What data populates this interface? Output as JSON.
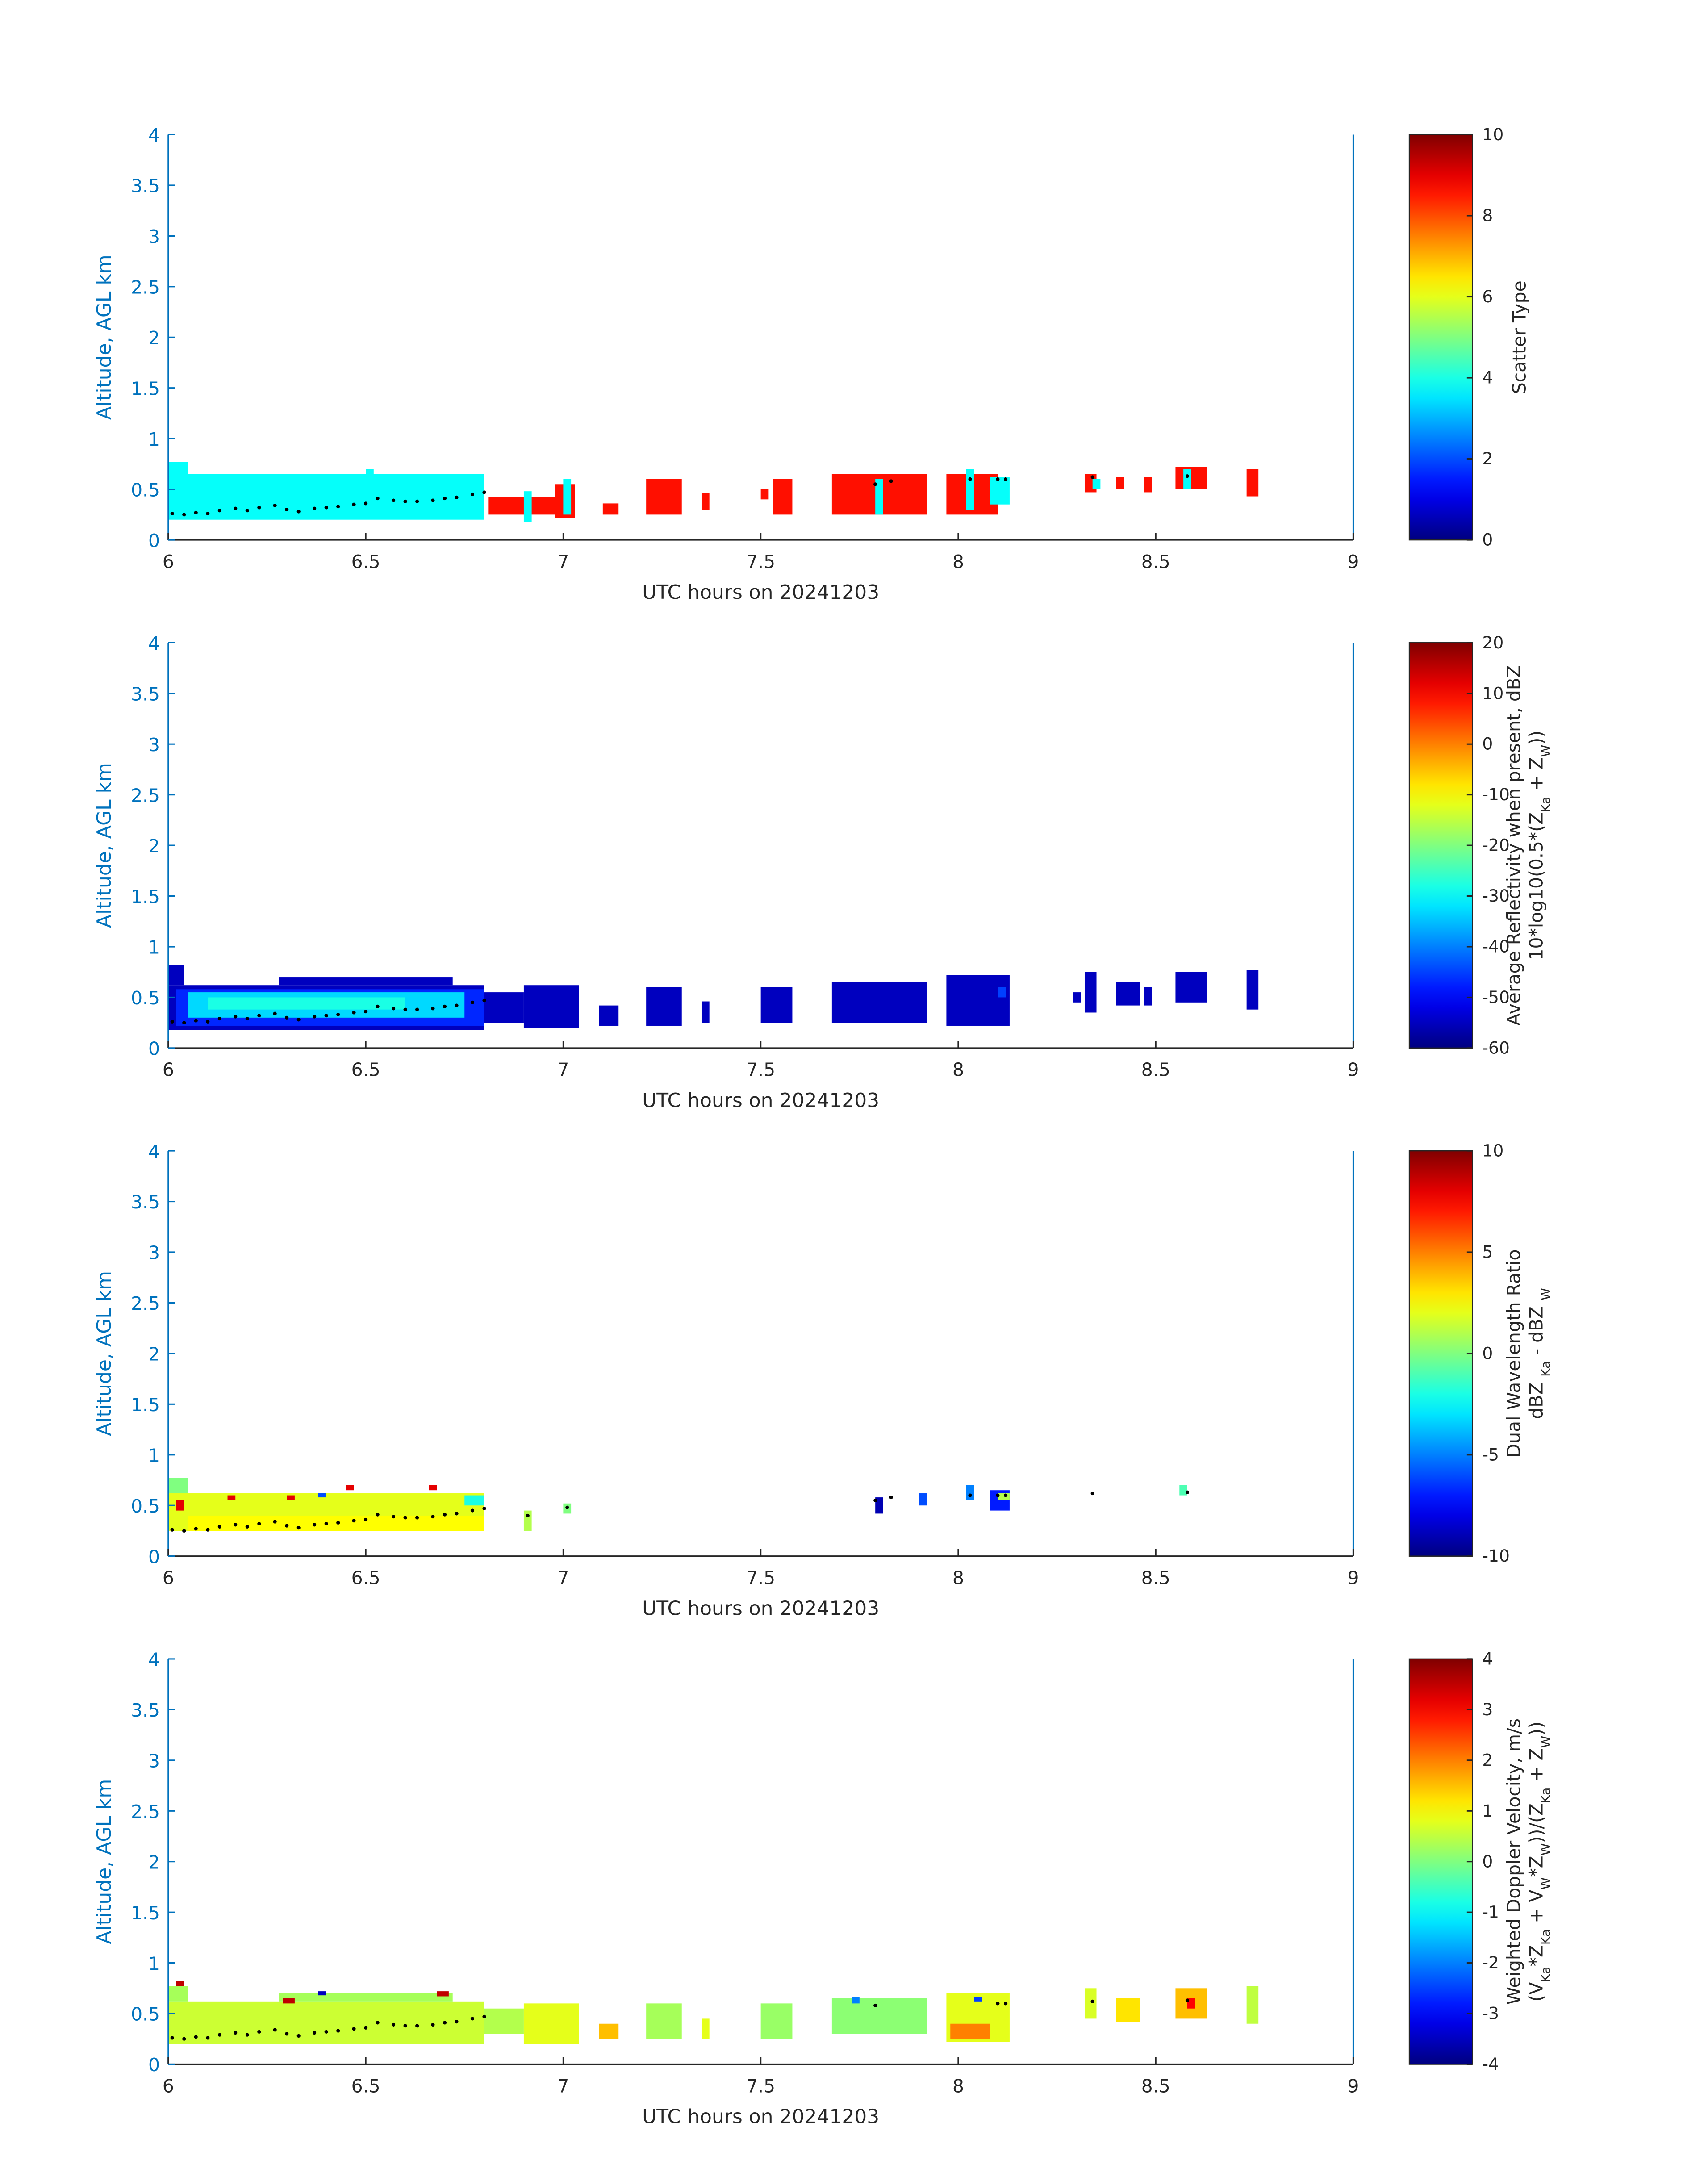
{
  "chart_data": [
    {
      "type": "heatmap",
      "colormap": "jet",
      "ylabel": "Altitude, AGL km",
      "xlabel": "UTC hours on 20241203",
      "xlim": [
        6,
        9
      ],
      "xticks": [
        6,
        6.5,
        7,
        7.5,
        8,
        8.5,
        9
      ],
      "ylim": [
        0,
        4
      ],
      "yticks": [
        0,
        0.5,
        1,
        1.5,
        2,
        2.5,
        3,
        3.5,
        4
      ],
      "clim": [
        0,
        10
      ],
      "cticks": [
        0,
        2,
        4,
        6,
        8,
        10
      ],
      "clabel": [
        [
          "Scatter Type"
        ]
      ],
      "cells": [
        [
          6.0,
          6.05,
          0.2,
          0.77,
          3.8
        ],
        [
          6.05,
          6.8,
          0.2,
          0.65,
          3.8
        ],
        [
          6.5,
          6.52,
          0.65,
          0.7,
          3.8
        ],
        [
          6.81,
          6.98,
          0.25,
          0.42,
          8.6
        ],
        [
          6.9,
          6.92,
          0.18,
          0.48,
          3.8
        ],
        [
          6.98,
          7.03,
          0.22,
          0.55,
          8.6
        ],
        [
          7.0,
          7.02,
          0.25,
          0.6,
          3.8
        ],
        [
          7.1,
          7.14,
          0.25,
          0.36,
          8.6
        ],
        [
          7.21,
          7.3,
          0.25,
          0.6,
          8.6
        ],
        [
          7.35,
          7.37,
          0.3,
          0.46,
          8.6
        ],
        [
          7.5,
          7.52,
          0.4,
          0.5,
          8.6
        ],
        [
          7.53,
          7.58,
          0.25,
          0.6,
          8.6
        ],
        [
          7.68,
          7.92,
          0.25,
          0.65,
          8.6
        ],
        [
          7.79,
          7.81,
          0.25,
          0.6,
          3.8
        ],
        [
          7.97,
          8.1,
          0.25,
          0.65,
          8.6
        ],
        [
          8.02,
          8.04,
          0.3,
          0.7,
          3.8
        ],
        [
          8.08,
          8.13,
          0.35,
          0.62,
          3.8
        ],
        [
          8.32,
          8.35,
          0.47,
          0.65,
          8.6
        ],
        [
          8.34,
          8.36,
          0.5,
          0.6,
          3.8
        ],
        [
          8.4,
          8.42,
          0.5,
          0.62,
          8.6
        ],
        [
          8.47,
          8.49,
          0.47,
          0.62,
          8.6
        ],
        [
          8.55,
          8.63,
          0.5,
          0.72,
          8.6
        ],
        [
          8.57,
          8.59,
          0.5,
          0.7,
          3.8
        ],
        [
          8.73,
          8.76,
          0.43,
          0.7,
          8.6
        ]
      ],
      "cloud_base": {
        "x": [
          6.01,
          6.04,
          6.07,
          6.1,
          6.13,
          6.17,
          6.2,
          6.23,
          6.27,
          6.3,
          6.33,
          6.37,
          6.4,
          6.43,
          6.47,
          6.5,
          6.53,
          6.57,
          6.6,
          6.63,
          6.67,
          6.7,
          6.73,
          6.77,
          6.8,
          7.79,
          7.83,
          8.03,
          8.1,
          8.12,
          8.34,
          8.58
        ],
        "y": [
          0.26,
          0.25,
          0.27,
          0.26,
          0.29,
          0.31,
          0.29,
          0.32,
          0.34,
          0.3,
          0.28,
          0.31,
          0.32,
          0.33,
          0.35,
          0.36,
          0.41,
          0.39,
          0.38,
          0.38,
          0.39,
          0.41,
          0.42,
          0.45,
          0.47,
          0.55,
          0.58,
          0.6,
          0.6,
          0.6,
          0.62,
          0.63
        ]
      }
    },
    {
      "type": "heatmap",
      "colormap": "jet",
      "ylabel": "Altitude, AGL km",
      "xlabel": "UTC hours on 20241203",
      "xlim": [
        6,
        9
      ],
      "xticks": [
        6,
        6.5,
        7,
        7.5,
        8,
        8.5,
        9
      ],
      "ylim": [
        0,
        4
      ],
      "yticks": [
        0,
        0.5,
        1,
        1.5,
        2,
        2.5,
        3,
        3.5,
        4
      ],
      "clim": [
        -60,
        20
      ],
      "cticks": [
        -60,
        -50,
        -40,
        -30,
        -20,
        -10,
        0,
        10,
        20
      ],
      "clabel": [
        [
          "Average Reflectivity when present, dBZ"
        ],
        [
          "10*log10(0.5*(Z",
          "Ka",
          " + Z",
          "W",
          "))"
        ]
      ],
      "cells": [
        [
          6.0,
          6.8,
          0.18,
          0.62,
          -55
        ],
        [
          6.0,
          6.04,
          0.62,
          0.82,
          -55
        ],
        [
          6.28,
          6.72,
          0.62,
          0.7,
          -55
        ],
        [
          6.02,
          6.8,
          0.22,
          0.58,
          -47
        ],
        [
          6.05,
          6.75,
          0.3,
          0.55,
          -33
        ],
        [
          6.1,
          6.6,
          0.38,
          0.5,
          -28
        ],
        [
          6.8,
          6.9,
          0.25,
          0.55,
          -55
        ],
        [
          6.9,
          7.04,
          0.2,
          0.62,
          -55
        ],
        [
          7.09,
          7.14,
          0.22,
          0.42,
          -55
        ],
        [
          7.21,
          7.3,
          0.22,
          0.6,
          -55
        ],
        [
          7.35,
          7.37,
          0.25,
          0.46,
          -55
        ],
        [
          7.5,
          7.58,
          0.25,
          0.6,
          -55
        ],
        [
          7.68,
          7.92,
          0.25,
          0.65,
          -55
        ],
        [
          7.97,
          8.13,
          0.22,
          0.72,
          -55
        ],
        [
          8.1,
          8.12,
          0.5,
          0.6,
          -45
        ],
        [
          8.29,
          8.31,
          0.45,
          0.55,
          -55
        ],
        [
          8.32,
          8.35,
          0.35,
          0.75,
          -55
        ],
        [
          8.4,
          8.46,
          0.42,
          0.65,
          -55
        ],
        [
          8.47,
          8.49,
          0.42,
          0.6,
          -55
        ],
        [
          8.55,
          8.63,
          0.45,
          0.75,
          -55
        ],
        [
          8.73,
          8.76,
          0.38,
          0.77,
          -55
        ]
      ],
      "cloud_base": {
        "x": [
          6.01,
          6.04,
          6.07,
          6.1,
          6.13,
          6.17,
          6.2,
          6.23,
          6.27,
          6.3,
          6.33,
          6.37,
          6.4,
          6.43,
          6.47,
          6.5,
          6.53,
          6.57,
          6.6,
          6.63,
          6.67,
          6.7,
          6.73,
          6.77,
          6.8
        ],
        "y": [
          0.26,
          0.25,
          0.27,
          0.26,
          0.29,
          0.31,
          0.29,
          0.32,
          0.34,
          0.3,
          0.28,
          0.31,
          0.32,
          0.33,
          0.35,
          0.36,
          0.41,
          0.39,
          0.38,
          0.38,
          0.39,
          0.41,
          0.42,
          0.45,
          0.47
        ]
      }
    },
    {
      "type": "heatmap",
      "colormap": "jet",
      "ylabel": "Altitude, AGL km",
      "xlabel": "UTC hours on 20241203",
      "xlim": [
        6,
        9
      ],
      "xticks": [
        6,
        6.5,
        7,
        7.5,
        8,
        8.5,
        9
      ],
      "ylim": [
        0,
        4
      ],
      "yticks": [
        0,
        0.5,
        1,
        1.5,
        2,
        2.5,
        3,
        3.5,
        4
      ],
      "clim": [
        -10,
        10
      ],
      "cticks": [
        -10,
        -5,
        0,
        5,
        10
      ],
      "clabel": [
        [
          "Dual Wavelength Ratio"
        ],
        [
          "dBZ ",
          "Ka",
          " - dBZ ",
          "W"
        ]
      ],
      "cells": [
        [
          6.0,
          6.05,
          0.55,
          0.77,
          0
        ],
        [
          6.0,
          6.8,
          0.25,
          0.62,
          2
        ],
        [
          6.05,
          6.8,
          0.25,
          0.4,
          2.5
        ],
        [
          6.02,
          6.04,
          0.45,
          0.55,
          8
        ],
        [
          6.15,
          6.17,
          0.55,
          0.6,
          8
        ],
        [
          6.3,
          6.32,
          0.55,
          0.6,
          8
        ],
        [
          6.45,
          6.47,
          0.65,
          0.7,
          8
        ],
        [
          6.66,
          6.68,
          0.65,
          0.7,
          8
        ],
        [
          6.38,
          6.4,
          0.58,
          0.62,
          -6
        ],
        [
          6.75,
          6.8,
          0.5,
          0.6,
          -2
        ],
        [
          6.9,
          6.92,
          0.25,
          0.45,
          1
        ],
        [
          7.0,
          7.02,
          0.42,
          0.52,
          0
        ],
        [
          7.79,
          7.81,
          0.42,
          0.58,
          -9
        ],
        [
          7.9,
          7.92,
          0.5,
          0.62,
          -6
        ],
        [
          8.02,
          8.04,
          0.55,
          0.7,
          -5
        ],
        [
          8.08,
          8.13,
          0.45,
          0.65,
          -7
        ],
        [
          8.1,
          8.13,
          0.55,
          0.62,
          1
        ],
        [
          8.56,
          8.58,
          0.6,
          0.7,
          -1
        ]
      ],
      "cloud_base": {
        "x": [
          6.01,
          6.04,
          6.07,
          6.1,
          6.13,
          6.17,
          6.2,
          6.23,
          6.27,
          6.3,
          6.33,
          6.37,
          6.4,
          6.43,
          6.47,
          6.5,
          6.53,
          6.57,
          6.6,
          6.63,
          6.67,
          6.7,
          6.73,
          6.77,
          6.8,
          6.91,
          7.01,
          7.79,
          7.83,
          8.03,
          8.1,
          8.12,
          8.34,
          8.58
        ],
        "y": [
          0.26,
          0.25,
          0.27,
          0.26,
          0.29,
          0.31,
          0.29,
          0.32,
          0.34,
          0.3,
          0.28,
          0.31,
          0.32,
          0.33,
          0.35,
          0.36,
          0.41,
          0.39,
          0.38,
          0.38,
          0.39,
          0.41,
          0.42,
          0.45,
          0.47,
          0.4,
          0.48,
          0.55,
          0.58,
          0.6,
          0.6,
          0.6,
          0.62,
          0.63
        ]
      }
    },
    {
      "type": "heatmap",
      "colormap": "jet",
      "ylabel": "Altitude, AGL km",
      "xlabel": "UTC hours on 20241203",
      "xlim": [
        6,
        9
      ],
      "xticks": [
        6,
        6.5,
        7,
        7.5,
        8,
        8.5,
        9
      ],
      "ylim": [
        0,
        4
      ],
      "yticks": [
        0,
        0.5,
        1,
        1.5,
        2,
        2.5,
        3,
        3.5,
        4
      ],
      "clim": [
        -4,
        4
      ],
      "cticks": [
        -4,
        -3,
        -2,
        -1,
        0,
        1,
        2,
        3,
        4
      ],
      "clabel": [
        [
          "Weighted Doppler Velocity, m/s"
        ],
        [
          "(V",
          "Ka",
          "*Z",
          "Ka",
          " + V",
          "W",
          "*Z",
          "W",
          "))/(Z",
          "Ka",
          " + Z",
          "W",
          "))"
        ]
      ],
      "cells": [
        [
          6.0,
          6.8,
          0.2,
          0.62,
          0.6
        ],
        [
          6.0,
          6.05,
          0.62,
          0.77,
          0.3
        ],
        [
          6.28,
          6.72,
          0.62,
          0.7,
          0.3
        ],
        [
          6.02,
          6.04,
          0.77,
          0.82,
          3.5
        ],
        [
          6.29,
          6.32,
          0.6,
          0.65,
          3.5
        ],
        [
          6.38,
          6.4,
          0.68,
          0.72,
          -3.5
        ],
        [
          6.68,
          6.71,
          0.67,
          0.72,
          3.5
        ],
        [
          6.8,
          6.9,
          0.3,
          0.55,
          0.4
        ],
        [
          6.9,
          7.04,
          0.2,
          0.6,
          0.8
        ],
        [
          7.09,
          7.14,
          0.25,
          0.4,
          1.5
        ],
        [
          7.21,
          7.3,
          0.25,
          0.6,
          0.3
        ],
        [
          7.35,
          7.37,
          0.25,
          0.45,
          0.8
        ],
        [
          7.5,
          7.58,
          0.25,
          0.6,
          0.2
        ],
        [
          7.68,
          7.92,
          0.3,
          0.65,
          0.1
        ],
        [
          7.73,
          7.75,
          0.6,
          0.66,
          -2
        ],
        [
          7.97,
          8.13,
          0.22,
          0.7,
          0.8
        ],
        [
          7.98,
          8.08,
          0.25,
          0.4,
          2.0
        ],
        [
          8.04,
          8.06,
          0.62,
          0.66,
          -2.5
        ],
        [
          8.32,
          8.35,
          0.45,
          0.75,
          0.7
        ],
        [
          8.4,
          8.46,
          0.42,
          0.65,
          1.2
        ],
        [
          8.55,
          8.63,
          0.45,
          0.75,
          1.5
        ],
        [
          8.58,
          8.6,
          0.55,
          0.65,
          3
        ],
        [
          8.73,
          8.76,
          0.4,
          0.77,
          0.5
        ]
      ],
      "cloud_base": {
        "x": [
          6.01,
          6.04,
          6.07,
          6.1,
          6.13,
          6.17,
          6.2,
          6.23,
          6.27,
          6.3,
          6.33,
          6.37,
          6.4,
          6.43,
          6.47,
          6.5,
          6.53,
          6.57,
          6.6,
          6.63,
          6.67,
          6.7,
          6.73,
          6.77,
          6.8,
          7.79,
          8.1,
          8.12,
          8.34,
          8.58
        ],
        "y": [
          0.26,
          0.25,
          0.27,
          0.26,
          0.29,
          0.31,
          0.29,
          0.32,
          0.34,
          0.3,
          0.28,
          0.31,
          0.32,
          0.33,
          0.35,
          0.36,
          0.41,
          0.39,
          0.38,
          0.38,
          0.39,
          0.41,
          0.42,
          0.45,
          0.47,
          0.58,
          0.6,
          0.6,
          0.62,
          0.63
        ]
      }
    }
  ]
}
